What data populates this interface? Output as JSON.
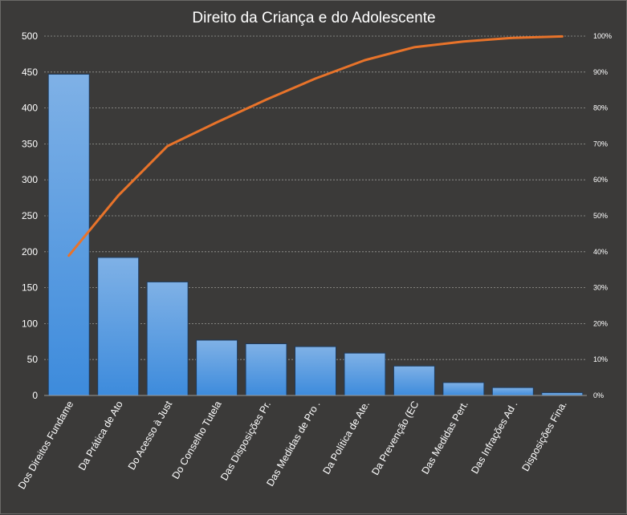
{
  "chart_data": {
    "type": "bar",
    "title": "Direito da Criança e do Adolescente",
    "xlabel": "",
    "ylabel": "",
    "categories": [
      "Dos Direitos Fundame",
      "Da Prática de Ato",
      "Do Acesso à Just",
      "Do Conselho Tutela",
      "Das Disposições Pr.",
      "Das Medidas de Pro .",
      "Da Política de Ate.",
      "Da Prevenção (EC",
      "Das Medidas Pert.",
      "Das Infrações Ad .",
      "Disposições Fina."
    ],
    "series": [
      {
        "type": "bar",
        "values": [
          447,
          192,
          158,
          77,
          72,
          68,
          59,
          41,
          18,
          11,
          4
        ]
      },
      {
        "type": "line",
        "axis": "secondary",
        "values": [
          38.9,
          55.6,
          69.4,
          76.0,
          82.3,
          88.2,
          93.3,
          96.9,
          98.5,
          99.5,
          99.9
        ]
      }
    ],
    "ylim": [
      0,
      500
    ],
    "yticks": [
      0,
      50,
      100,
      150,
      200,
      250,
      300,
      350,
      400,
      450,
      500
    ],
    "y2lim": [
      0,
      100
    ],
    "y2ticks": [
      "0%",
      "10%",
      "20%",
      "30%",
      "40%",
      "50%",
      "60%",
      "70%",
      "80%",
      "90%",
      "100%"
    ],
    "grid": true,
    "legend": "none",
    "colors": {
      "background": "#3b3a39",
      "bar_top": "#7fb1e6",
      "bar_bottom": "#3d8bdc",
      "bar_edge": "#1e3a5c",
      "line": "#e8732a",
      "grid": "#9a9996",
      "text": "#ffffff"
    }
  }
}
